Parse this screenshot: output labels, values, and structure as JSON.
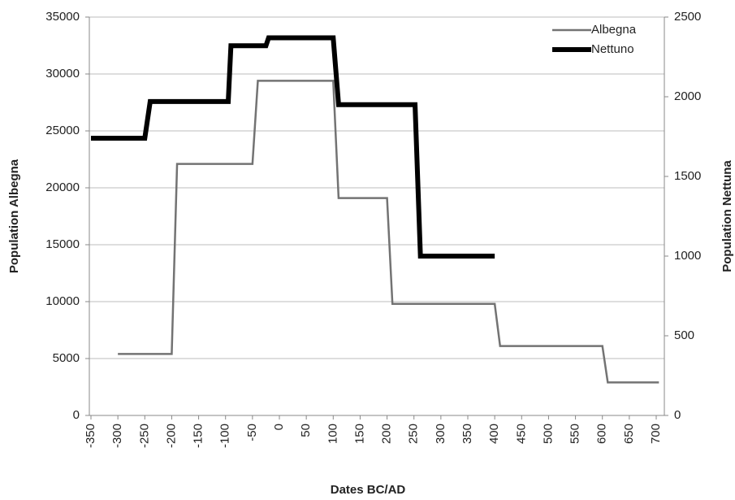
{
  "chart_data": {
    "type": "line",
    "xlabel": "Dates BC/AD",
    "ylabel": "Population Albegna",
    "y2label": "Population Nettuna",
    "xlim": [
      -350,
      700
    ],
    "xticks": [
      -350,
      -300,
      -250,
      -200,
      -150,
      -100,
      -50,
      0,
      50,
      100,
      150,
      200,
      250,
      300,
      350,
      400,
      450,
      500,
      550,
      600,
      650,
      700
    ],
    "ylim": [
      0,
      35000
    ],
    "yticks": [
      0,
      5000,
      10000,
      15000,
      20000,
      25000,
      30000,
      35000
    ],
    "y2lim": [
      0,
      2500
    ],
    "y2ticks": [
      0,
      500,
      1000,
      1500,
      2000,
      2500
    ],
    "grid": true,
    "legend": "upper right",
    "series": [
      {
        "name": "Albegna",
        "color": "#737373",
        "width": 2.5,
        "x": [
          -300,
          -200,
          -190,
          -50,
          -40,
          100,
          110,
          200,
          210,
          400,
          410,
          600,
          610,
          705
        ],
        "values": [
          5400,
          5400,
          22100,
          22100,
          29400,
          29400,
          19100,
          19100,
          9800,
          9800,
          6100,
          6100,
          2900,
          2900
        ]
      },
      {
        "name": "Nettuno",
        "color": "#000000",
        "width": 6,
        "axis": "y2",
        "x": [
          -350,
          -250,
          -240,
          -95,
          -90,
          -25,
          -20,
          100,
          110,
          252,
          262,
          400
        ],
        "values": [
          1740,
          1740,
          1970,
          1970,
          2320,
          2320,
          2370,
          2370,
          1950,
          1950,
          1000,
          1000
        ]
      }
    ]
  }
}
